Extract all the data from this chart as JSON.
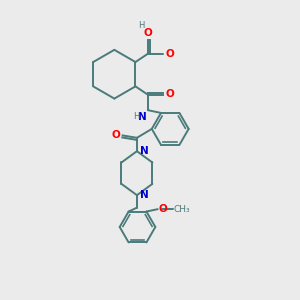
{
  "bg_color": "#ebebeb",
  "bond_color": "#4a7a7a",
  "O_color": "#ff0000",
  "N_color": "#0000cc",
  "lw": 1.4,
  "fs": 7.5,
  "fs_small": 6.0,
  "xlim": [
    0,
    10
  ],
  "ylim": [
    0,
    10
  ]
}
